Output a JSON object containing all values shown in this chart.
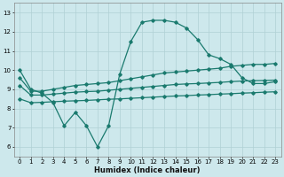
{
  "bg_color": "#cde8ec",
  "grid_color": "#b0d0d4",
  "line_color": "#1a7a6e",
  "xlabel": "Humidex (Indice chaleur)",
  "xlim": [
    -0.5,
    23.5
  ],
  "ylim": [
    5.5,
    13.5
  ],
  "xticks": [
    0,
    1,
    2,
    3,
    4,
    5,
    6,
    7,
    8,
    9,
    10,
    11,
    12,
    13,
    14,
    15,
    16,
    17,
    18,
    19,
    20,
    21,
    22,
    23
  ],
  "yticks": [
    6,
    7,
    8,
    9,
    10,
    11,
    12,
    13
  ],
  "line1_x": [
    0,
    1,
    2,
    3,
    4,
    5,
    6,
    7,
    8,
    9,
    10,
    11,
    12,
    13,
    14,
    15,
    16,
    17,
    18,
    19,
    20,
    21,
    22,
    23
  ],
  "line1_y": [
    10.0,
    9.0,
    8.8,
    8.3,
    7.1,
    7.8,
    7.1,
    6.0,
    7.1,
    9.8,
    11.5,
    12.5,
    12.6,
    12.6,
    12.5,
    12.2,
    11.6,
    10.8,
    10.6,
    10.3,
    9.6,
    9.3,
    9.3,
    9.4
  ],
  "line2_x": [
    0,
    1,
    2,
    3,
    4,
    5,
    6,
    7,
    8,
    9,
    10,
    11,
    12,
    13,
    14,
    15,
    16,
    17,
    18,
    19,
    20,
    21,
    22,
    23
  ],
  "line2_y": [
    9.6,
    8.9,
    8.9,
    9.0,
    9.1,
    9.2,
    9.25,
    9.3,
    9.35,
    9.45,
    9.55,
    9.65,
    9.75,
    9.85,
    9.9,
    9.95,
    10.0,
    10.05,
    10.1,
    10.2,
    10.25,
    10.3,
    10.3,
    10.35
  ],
  "line3_x": [
    0,
    1,
    2,
    3,
    4,
    5,
    6,
    7,
    8,
    9,
    10,
    11,
    12,
    13,
    14,
    15,
    16,
    17,
    18,
    19,
    20,
    21,
    22,
    23
  ],
  "line3_y": [
    9.2,
    8.7,
    8.7,
    8.75,
    8.8,
    8.85,
    8.88,
    8.9,
    8.95,
    9.0,
    9.05,
    9.1,
    9.15,
    9.2,
    9.25,
    9.28,
    9.3,
    9.33,
    9.36,
    9.4,
    9.43,
    9.45,
    9.46,
    9.48
  ],
  "line4_x": [
    0,
    1,
    2,
    3,
    4,
    5,
    6,
    7,
    8,
    9,
    10,
    11,
    12,
    13,
    14,
    15,
    16,
    17,
    18,
    19,
    20,
    21,
    22,
    23
  ],
  "line4_y": [
    8.5,
    8.3,
    8.32,
    8.35,
    8.38,
    8.4,
    8.42,
    8.45,
    8.48,
    8.5,
    8.53,
    8.56,
    8.59,
    8.62,
    8.65,
    8.67,
    8.7,
    8.72,
    8.75,
    8.77,
    8.8,
    8.82,
    8.85,
    8.87
  ]
}
